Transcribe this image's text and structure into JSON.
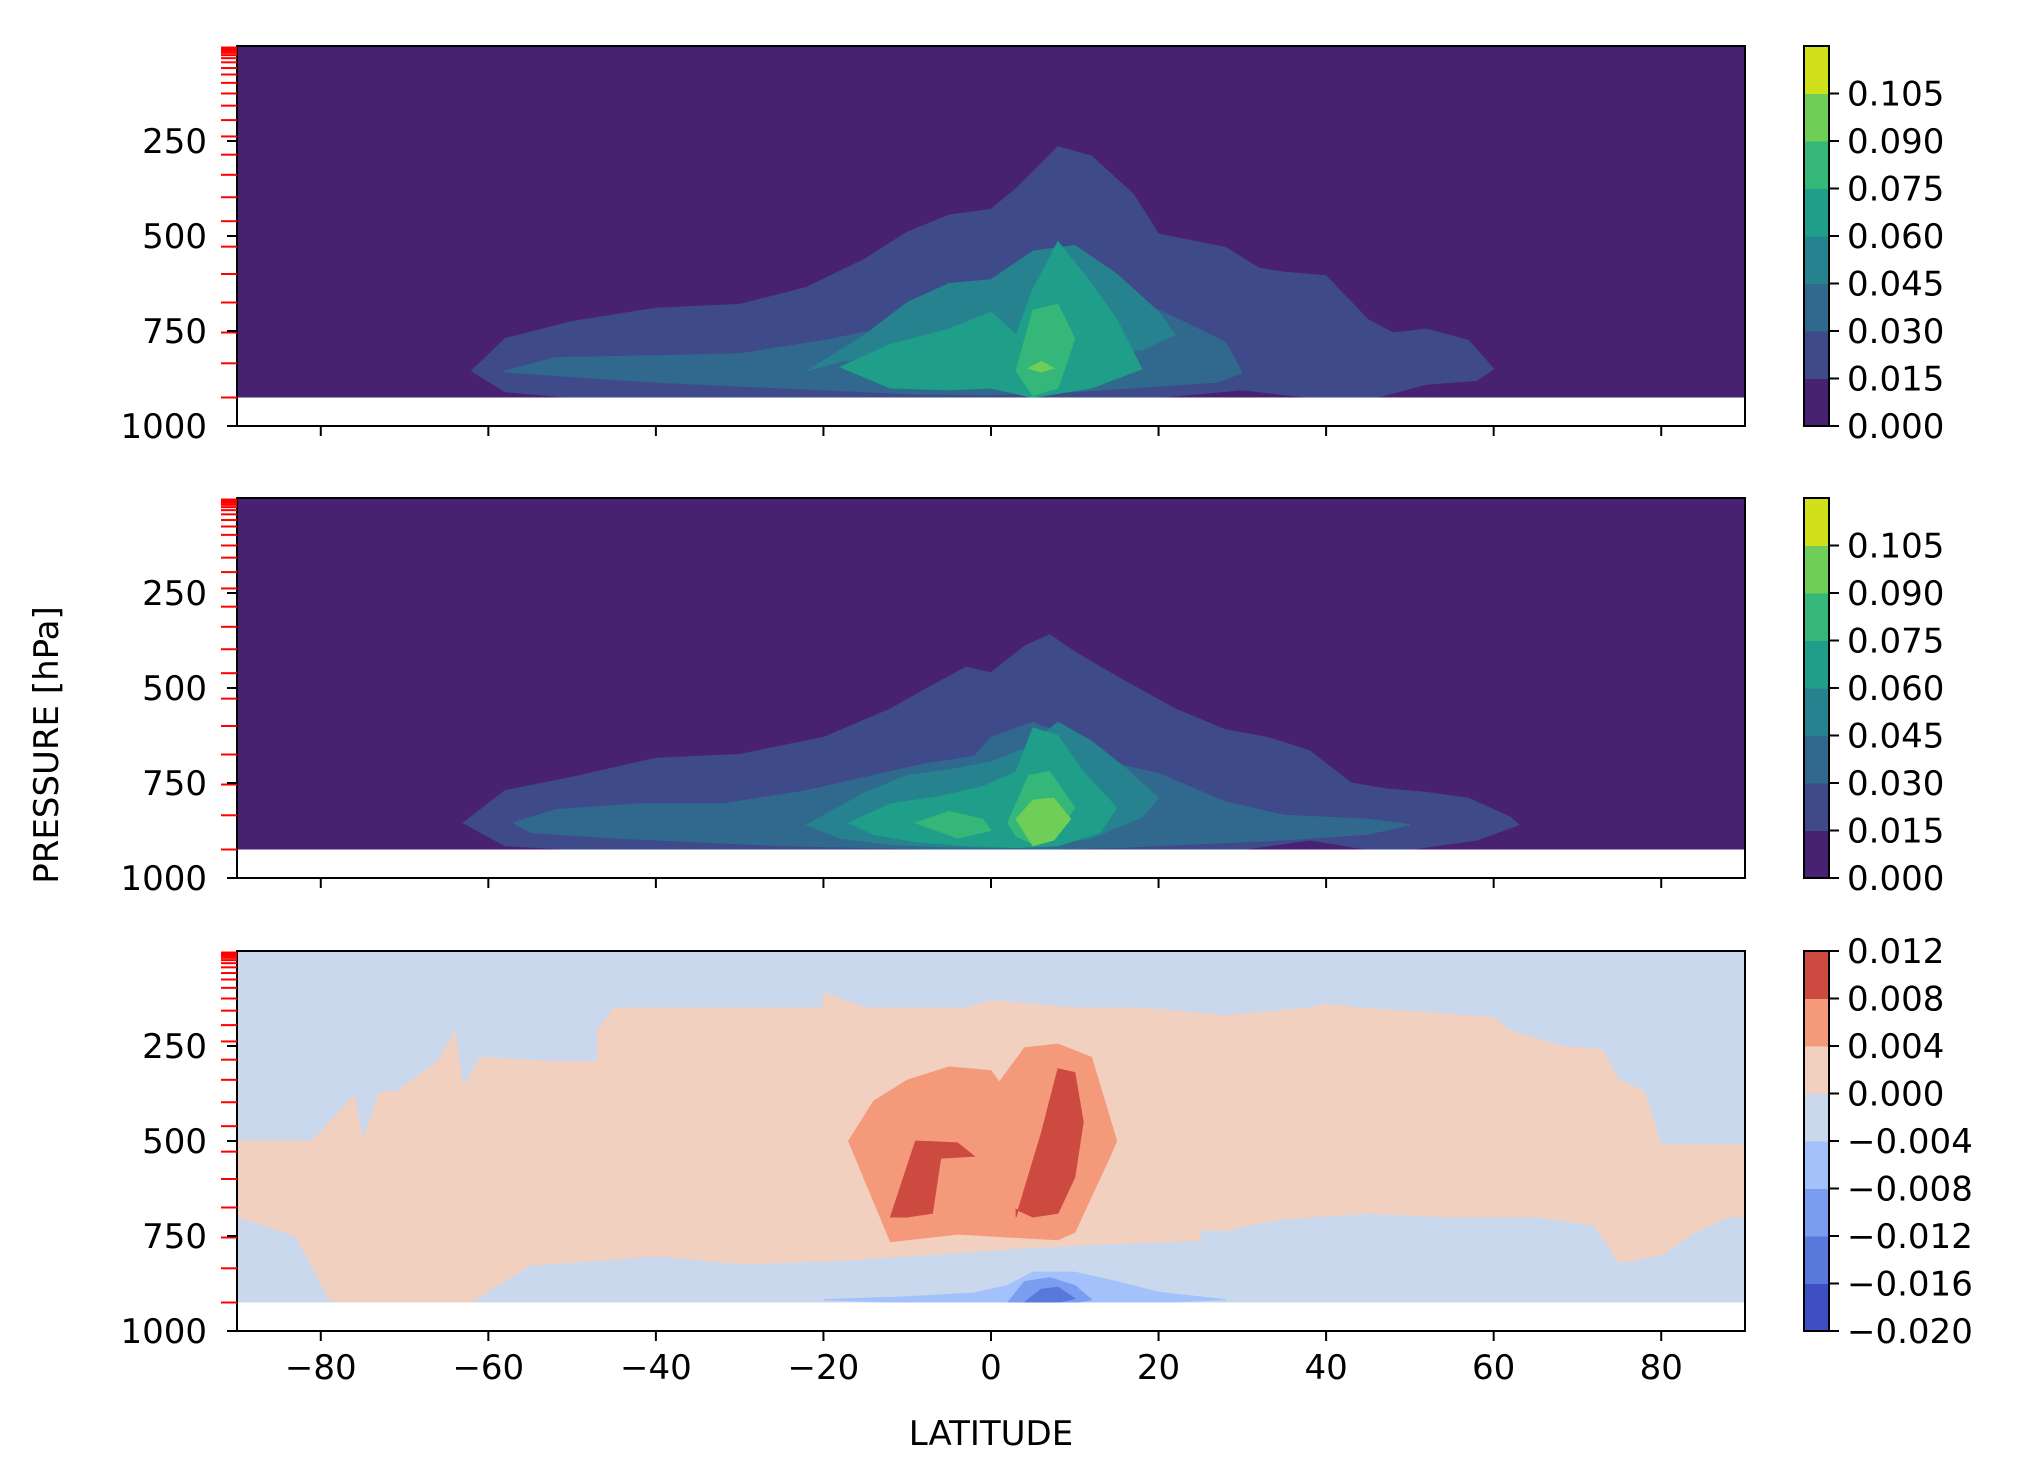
{
  "figure": {
    "ylabel": "PRESSURE [hPa]",
    "xlabel": "LATITUDE"
  },
  "chart_data": [
    {
      "type": "contourf",
      "panel": "top",
      "xlabel": "",
      "ylabel": "PRESSURE [hPa]",
      "xlim": [
        -90,
        90
      ],
      "ylim": [
        1000,
        0
      ],
      "yaxis_inverted": true,
      "x_ticks": [
        "-80",
        "-60",
        "-40",
        "-20",
        "0",
        "20",
        "40",
        "60",
        "80"
      ],
      "x_tick_labels_shown": false,
      "y_ticks": [
        "250",
        "500",
        "750",
        "1000"
      ],
      "model_levels_marked": "red tick marks on left axis",
      "data_bottom_hPa": 925,
      "colorbar": {
        "colormap": "viridis",
        "levels": [
          "0.000",
          "0.015",
          "0.030",
          "0.045",
          "0.060",
          "0.075",
          "0.090",
          "0.105"
        ],
        "colors": [
          "#482173",
          "#3e4a89",
          "#31688e",
          "#26828e",
          "#1f9e89",
          "#35b779",
          "#6ece58",
          "#d0e11c"
        ]
      },
      "contours": [
        {
          "band": 1,
          "lat": [
            -62,
            -58,
            -50,
            -40,
            -30,
            -22,
            -15,
            -10,
            -5,
            0,
            3,
            8,
            12,
            17,
            20,
            28,
            32,
            35,
            40,
            45,
            48,
            52,
            57,
            60,
            58,
            52,
            46,
            38,
            30,
            20,
            10,
            0,
            -10,
            -20,
            -30,
            -40,
            -50,
            -58
          ],
          "p": [
            855,
            770,
            725,
            690,
            680,
            635,
            560,
            490,
            445,
            430,
            375,
            265,
            290,
            390,
            495,
            530,
            585,
            595,
            605,
            720,
            755,
            745,
            775,
            850,
            880,
            890,
            925,
            925,
            905,
            925,
            925,
            925,
            925,
            925,
            925,
            925,
            925,
            910
          ]
        },
        {
          "band": 2,
          "lat": [
            -58,
            -52,
            -40,
            -30,
            -20,
            -12,
            -5,
            0,
            5,
            10,
            15,
            22,
            28,
            30,
            27,
            20,
            10,
            0,
            -10,
            -20,
            -30,
            -40,
            -50,
            -58
          ],
          "p": [
            855,
            820,
            815,
            810,
            775,
            740,
            715,
            690,
            605,
            620,
            645,
            715,
            780,
            860,
            885,
            895,
            910,
            918,
            915,
            905,
            895,
            885,
            870,
            858
          ]
        },
        {
          "band": 3,
          "lat": [
            -22,
            -15,
            -10,
            -5,
            0,
            5,
            10,
            15,
            20,
            22,
            18,
            10,
            0,
            -10,
            -18,
            -22
          ],
          "p": [
            855,
            760,
            675,
            625,
            615,
            540,
            525,
            600,
            700,
            760,
            800,
            815,
            805,
            810,
            830,
            855
          ]
        },
        {
          "band": 4,
          "lat": [
            -18,
            -12,
            -5,
            0,
            3,
            5,
            8,
            12,
            15,
            18,
            12,
            5,
            0,
            -5,
            -12,
            -18
          ],
          "p": [
            845,
            785,
            745,
            700,
            760,
            640,
            515,
            625,
            720,
            850,
            900,
            925,
            900,
            905,
            900,
            845
          ]
        },
        {
          "band": 5,
          "lat": [
            3,
            5,
            8,
            10,
            8,
            5,
            3
          ],
          "p": [
            855,
            695,
            680,
            770,
            900,
            920,
            855
          ]
        },
        {
          "band": 6,
          "lat": [
            4.5,
            6,
            7.5,
            6,
            4.5
          ],
          "p": [
            848,
            830,
            848,
            858,
            848
          ]
        }
      ]
    },
    {
      "type": "contourf",
      "panel": "middle",
      "xlabel": "",
      "ylabel": "",
      "xlim": [
        -90,
        90
      ],
      "ylim": [
        1000,
        0
      ],
      "yaxis_inverted": true,
      "x_ticks": [
        "-80",
        "-60",
        "-40",
        "-20",
        "0",
        "20",
        "40",
        "60",
        "80"
      ],
      "x_tick_labels_shown": false,
      "y_ticks": [
        "250",
        "500",
        "750",
        "1000"
      ],
      "model_levels_marked": "red tick marks on left axis",
      "data_bottom_hPa": 925,
      "colorbar": {
        "colormap": "viridis",
        "levels": [
          "0.000",
          "0.015",
          "0.030",
          "0.045",
          "0.060",
          "0.075",
          "0.090",
          "0.105"
        ],
        "colors": [
          "#482173",
          "#3e4a89",
          "#31688e",
          "#26828e",
          "#1f9e89",
          "#35b779",
          "#6ece58",
          "#d0e11c"
        ]
      },
      "contours": [
        {
          "band": 1,
          "lat": [
            -63,
            -58,
            -50,
            -40,
            -30,
            -20,
            -12,
            -8,
            -3,
            0,
            4,
            7,
            10,
            15,
            22,
            28,
            33,
            38,
            43,
            47,
            52,
            57,
            62,
            63,
            58,
            50,
            45,
            38,
            30,
            20,
            10,
            0,
            -10,
            -20,
            -30,
            -40,
            -50,
            -58
          ],
          "p": [
            855,
            770,
            735,
            685,
            675,
            630,
            555,
            505,
            445,
            460,
            390,
            360,
            405,
            470,
            555,
            610,
            630,
            665,
            750,
            765,
            775,
            790,
            840,
            860,
            900,
            925,
            925,
            900,
            925,
            925,
            925,
            925,
            925,
            925,
            925,
            925,
            925,
            915
          ]
        },
        {
          "band": 2,
          "lat": [
            -57,
            -52,
            -42,
            -32,
            -22,
            -15,
            -8,
            -2,
            0,
            5,
            10,
            15,
            20,
            28,
            35,
            45,
            50,
            45,
            35,
            25,
            15,
            5,
            -5,
            -15,
            -25,
            -35,
            -45,
            -55,
            -57
          ],
          "p": [
            855,
            820,
            805,
            805,
            770,
            735,
            700,
            680,
            630,
            590,
            635,
            700,
            725,
            800,
            835,
            845,
            860,
            885,
            900,
            910,
            920,
            925,
            925,
            920,
            915,
            905,
            895,
            880,
            855
          ]
        },
        {
          "band": 3,
          "lat": [
            -22,
            -15,
            -10,
            -5,
            0,
            4,
            8,
            12,
            16,
            20,
            18,
            12,
            6,
            0,
            -6,
            -12,
            -18,
            -22
          ],
          "p": [
            860,
            775,
            730,
            715,
            695,
            660,
            590,
            640,
            710,
            790,
            840,
            895,
            915,
            920,
            918,
            912,
            895,
            860
          ]
        },
        {
          "band": 4,
          "lat": [
            -17,
            -12,
            -6,
            -1,
            3,
            5,
            8,
            11,
            15,
            13,
            8,
            3,
            -3,
            -9,
            -14,
            -17
          ],
          "p": [
            855,
            805,
            785,
            760,
            720,
            605,
            625,
            720,
            815,
            880,
            915,
            920,
            915,
            905,
            885,
            855
          ]
        },
        {
          "band": 5,
          "lat": [
            -9,
            -5,
            -1,
            0,
            -4,
            -9
          ],
          "p": [
            855,
            825,
            845,
            875,
            895,
            855
          ]
        },
        {
          "band": 5,
          "lat": [
            2,
            4.5,
            7,
            10,
            8,
            5,
            3,
            2
          ],
          "p": [
            855,
            730,
            720,
            815,
            880,
            910,
            890,
            855
          ]
        },
        {
          "band": 6,
          "lat": [
            3,
            5,
            7.5,
            9.5,
            7.5,
            5,
            3
          ],
          "p": [
            845,
            795,
            790,
            845,
            900,
            915,
            845
          ]
        }
      ]
    },
    {
      "type": "contourf",
      "panel": "bottom",
      "xlabel": "LATITUDE",
      "ylabel": "",
      "xlim": [
        -90,
        90
      ],
      "ylim": [
        1000,
        0
      ],
      "yaxis_inverted": true,
      "x_ticks": [
        "−80",
        "−60",
        "−40",
        "−20",
        "0",
        "20",
        "40",
        "60",
        "80"
      ],
      "x_tick_labels_shown": true,
      "y_ticks": [
        "250",
        "500",
        "750",
        "1000"
      ],
      "model_levels_marked": "red tick marks on left axis",
      "data_bottom_hPa": 925,
      "colorbar": {
        "colormap": "coolwarm",
        "levels": [
          "−0.020",
          "−0.016",
          "−0.012",
          "−0.008",
          "−0.004",
          "0.000",
          "0.004",
          "0.008",
          "0.012"
        ],
        "colors": [
          "#3d4fc3",
          "#5878dc",
          "#7a9df0",
          "#a3c1fb",
          "#cad8ee",
          "#f1d0c0",
          "#f49a7b",
          "#cd4a40"
        ]
      },
      "contours": [
        {
          "band": 5,
          "lat": [
            -87,
            -83,
            -81,
            -76,
            -75,
            -73,
            -71,
            -66,
            -64,
            -63,
            -61,
            -53,
            -47,
            -47,
            -45,
            -30,
            -20,
            -20,
            -15,
            -3,
            0,
            10,
            18,
            28,
            38,
            40,
            44,
            60,
            62,
            68,
            73,
            75,
            78,
            80,
            90,
            90,
            88,
            84,
            80,
            75,
            72,
            65,
            55,
            45,
            35,
            30,
            28,
            25,
            25,
            15,
            5,
            -5,
            -15,
            -20,
            -25,
            -29,
            -30,
            -40,
            -50,
            -60,
            -71,
            -75,
            -78,
            -79,
            -83,
            -87,
            -90,
            -90
          ],
          "p": [
            500,
            500,
            500,
            380,
            500,
            370,
            370,
            290,
            210,
            360,
            280,
            290,
            290,
            210,
            150,
            150,
            150,
            110,
            150,
            150,
            130,
            150,
            150,
            170,
            150,
            140,
            150,
            175,
            210,
            250,
            260,
            340,
            370,
            510,
            510,
            700,
            700,
            740,
            800,
            820,
            720,
            700,
            700,
            690,
            705,
            725,
            735,
            735,
            762,
            770,
            780,
            795,
            810,
            830,
            855,
            900,
            925,
            925,
            925,
            925,
            925,
            925,
            930,
            915,
            750,
            720,
            700,
            500
          ]
        },
        {
          "band": 6,
          "lat": [
            -17,
            -14,
            -10,
            -5,
            0,
            1,
            4,
            8,
            12,
            15,
            14,
            10,
            8,
            4,
            0,
            -4,
            -8,
            -12,
            -17
          ],
          "p": [
            500,
            395,
            340,
            305,
            315,
            345,
            255,
            245,
            280,
            500,
            550,
            740,
            760,
            755,
            750,
            745,
            755,
            765,
            500
          ]
        },
        {
          "band": 7,
          "lat": [
            -12,
            -9,
            -4,
            -2,
            -6,
            -7,
            -10,
            -12
          ],
          "p": [
            700,
            500,
            505,
            540,
            545,
            690,
            700,
            700
          ]
        },
        {
          "band": 7,
          "lat": [
            3,
            6,
            8,
            10,
            11,
            10,
            8,
            5,
            3,
            3
          ],
          "p": [
            700,
            480,
            310,
            320,
            450,
            595,
            690,
            700,
            680,
            700
          ]
        },
        {
          "band": 4,
          "lat": [
            -62,
            -55,
            -40,
            -30,
            -28,
            -10,
            0,
            5,
            15,
            23,
            22,
            15,
            10,
            0,
            -10,
            -20,
            -25,
            -35,
            -50,
            -60,
            -62
          ],
          "p": [
            925,
            830,
            805,
            825,
            825,
            810,
            790,
            785,
            790,
            825,
            870,
            892,
            910,
            920,
            925,
            925,
            925,
            925,
            925,
            925,
            925
          ]
        },
        {
          "band": 4,
          "lat": [
            36,
            45,
            55,
            53,
            45,
            36
          ],
          "p": [
            845,
            840,
            850,
            865,
            855,
            845
          ]
        },
        {
          "band": 3,
          "lat": [
            -20,
            -10,
            -2,
            2,
            5,
            10,
            15,
            20,
            28,
            20,
            10,
            5,
            0,
            -10,
            -20
          ],
          "p": [
            918,
            910,
            900,
            880,
            845,
            845,
            870,
            898,
            918,
            925,
            925,
            925,
            925,
            925,
            918
          ]
        },
        {
          "band": 2,
          "lat": [
            2,
            4,
            7,
            10,
            12,
            10,
            7,
            4,
            2
          ],
          "p": [
            925,
            870,
            860,
            880,
            918,
            925,
            925,
            925,
            925
          ]
        },
        {
          "band": 1,
          "lat": [
            4,
            6,
            8,
            10,
            8,
            5,
            4
          ],
          "p": [
            925,
            890,
            885,
            915,
            925,
            925,
            925
          ]
        }
      ]
    }
  ],
  "colors": {
    "model_level_ticks": "#ff0000",
    "below_surface": "#ffffff",
    "frame": "#000000"
  },
  "model_levels_hPa": [
    4,
    8,
    13,
    18,
    24,
    32,
    43,
    58,
    75,
    97,
    125,
    157,
    195,
    238,
    286,
    339,
    398,
    461,
    528,
    600,
    675,
    754,
    835,
    925
  ]
}
